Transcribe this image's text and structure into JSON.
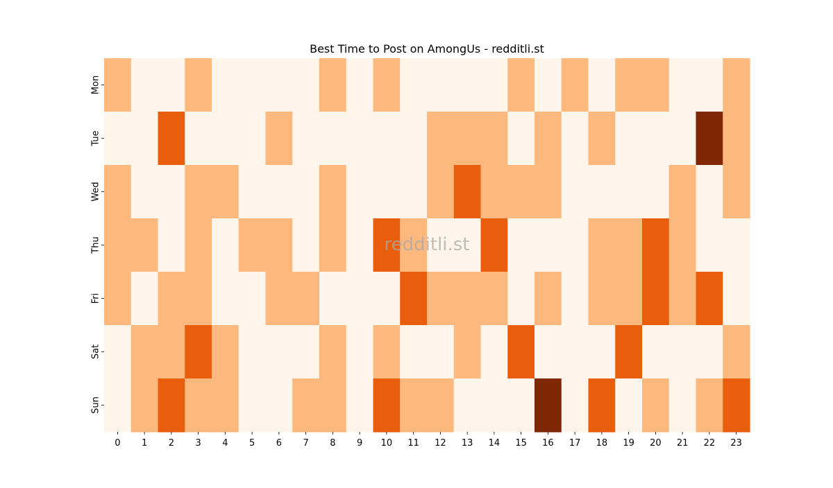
{
  "chart_data": {
    "type": "heatmap",
    "title": "Best Time to Post on AmongUs - redditli.st",
    "xlabel": "",
    "ylabel": "",
    "x": [
      "0",
      "1",
      "2",
      "3",
      "4",
      "5",
      "6",
      "7",
      "8",
      "9",
      "10",
      "11",
      "12",
      "13",
      "14",
      "15",
      "16",
      "17",
      "18",
      "19",
      "20",
      "21",
      "22",
      "23"
    ],
    "y": [
      "Mon",
      "Tue",
      "Wed",
      "Thu",
      "Fri",
      "Sat",
      "Sun"
    ],
    "values": [
      [
        1,
        0,
        0,
        1,
        0,
        0,
        0,
        0,
        1,
        0,
        1,
        0,
        0,
        0,
        0,
        1,
        0,
        1,
        0,
        1,
        1,
        0,
        0,
        1
      ],
      [
        0,
        0,
        2,
        0,
        0,
        0,
        1,
        0,
        0,
        0,
        0,
        0,
        1,
        1,
        1,
        0,
        1,
        0,
        1,
        0,
        0,
        0,
        3,
        1
      ],
      [
        1,
        0,
        0,
        1,
        1,
        0,
        0,
        0,
        1,
        0,
        0,
        0,
        1,
        2,
        1,
        1,
        1,
        0,
        0,
        0,
        0,
        1,
        0,
        1
      ],
      [
        1,
        1,
        0,
        1,
        0,
        1,
        1,
        0,
        1,
        0,
        2,
        1,
        0,
        0,
        2,
        0,
        0,
        0,
        1,
        1,
        2,
        1,
        0,
        0
      ],
      [
        1,
        0,
        1,
        1,
        0,
        0,
        1,
        1,
        0,
        0,
        0,
        2,
        1,
        1,
        1,
        0,
        1,
        0,
        1,
        1,
        2,
        1,
        2,
        0
      ],
      [
        0,
        1,
        1,
        2,
        1,
        0,
        0,
        0,
        1,
        0,
        1,
        0,
        0,
        1,
        0,
        2,
        0,
        0,
        0,
        2,
        0,
        0,
        0,
        1
      ],
      [
        0,
        1,
        2,
        1,
        1,
        0,
        0,
        1,
        1,
        0,
        2,
        1,
        1,
        0,
        0,
        0,
        3,
        0,
        2,
        0,
        1,
        0,
        1,
        2
      ]
    ],
    "value_range": [
      0,
      3
    ],
    "colormap": [
      "#fff5eb",
      "#fdb97d",
      "#e95e0d",
      "#7f2704"
    ],
    "colorbar": false,
    "grid": false,
    "watermark": "redditli.st"
  }
}
